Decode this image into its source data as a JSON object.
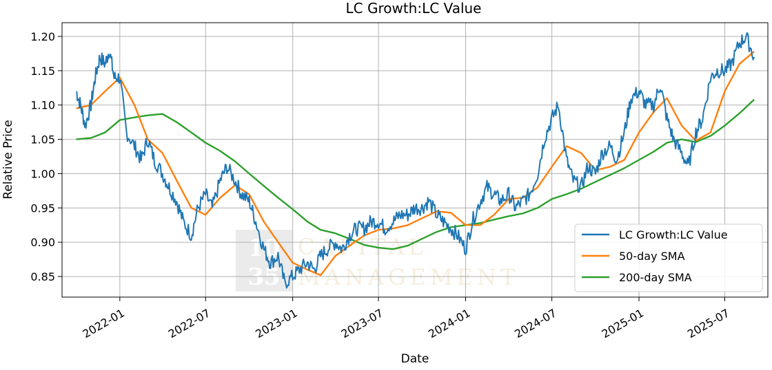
{
  "chart_data": {
    "type": "line",
    "title": "LC Growth:LC Value",
    "xlabel": "Date",
    "ylabel": "Relative Price",
    "xlim": [
      "2021-09-01",
      "2025-09-30"
    ],
    "ylim": [
      0.82,
      1.22
    ],
    "x_ticks": [
      "2022-01",
      "2022-07",
      "2023-01",
      "2023-07",
      "2024-01",
      "2024-07",
      "2025-01",
      "2025-07"
    ],
    "y_ticks": [
      "0.85",
      "0.90",
      "0.95",
      "1.00",
      "1.05",
      "1.10",
      "1.15",
      "1.20"
    ],
    "grid": true,
    "legend_position": "lower-right",
    "colors": {
      "series1": "#1f77b4",
      "series2": "#ff7f0e",
      "series3": "#2ca02c"
    },
    "series": [
      {
        "name": "LC Growth:LC Value",
        "x": [
          "2021-10-01",
          "2021-10-10",
          "2021-10-20",
          "2021-11-01",
          "2021-11-10",
          "2021-11-20",
          "2021-12-01",
          "2021-12-10",
          "2021-12-20",
          "2022-01-01",
          "2022-01-15",
          "2022-02-01",
          "2022-02-15",
          "2022-03-01",
          "2022-03-15",
          "2022-04-01",
          "2022-04-15",
          "2022-05-01",
          "2022-05-15",
          "2022-06-01",
          "2022-06-15",
          "2022-07-01",
          "2022-07-15",
          "2022-08-01",
          "2022-08-15",
          "2022-09-01",
          "2022-09-15",
          "2022-10-01",
          "2022-10-15",
          "2022-11-01",
          "2022-11-15",
          "2022-12-01",
          "2022-12-15",
          "2023-01-01",
          "2023-01-15",
          "2023-02-01",
          "2023-02-15",
          "2023-03-01",
          "2023-03-15",
          "2023-04-01",
          "2023-04-15",
          "2023-05-01",
          "2023-05-15",
          "2023-06-01",
          "2023-06-15",
          "2023-07-01",
          "2023-07-15",
          "2023-08-01",
          "2023-08-15",
          "2023-09-01",
          "2023-09-15",
          "2023-10-01",
          "2023-10-15",
          "2023-11-01",
          "2023-11-15",
          "2023-12-01",
          "2023-12-15",
          "2024-01-01",
          "2024-01-15",
          "2024-02-01",
          "2024-02-15",
          "2024-03-01",
          "2024-03-15",
          "2024-04-01",
          "2024-04-15",
          "2024-05-01",
          "2024-05-15",
          "2024-06-01",
          "2024-06-15",
          "2024-07-01",
          "2024-07-15",
          "2024-08-01",
          "2024-08-15",
          "2024-09-01",
          "2024-09-15",
          "2024-10-01",
          "2024-10-15",
          "2024-11-01",
          "2024-11-15",
          "2024-12-01",
          "2024-12-15",
          "2025-01-01",
          "2025-01-15",
          "2025-02-01",
          "2025-02-15",
          "2025-03-01",
          "2025-03-15",
          "2025-04-01",
          "2025-04-15",
          "2025-05-01",
          "2025-05-15",
          "2025-06-01",
          "2025-06-15",
          "2025-07-01",
          "2025-07-15",
          "2025-08-01",
          "2025-08-15",
          "2025-09-01"
        ],
        "values": [
          1.12,
          1.1,
          1.07,
          1.1,
          1.14,
          1.17,
          1.16,
          1.18,
          1.14,
          1.14,
          1.06,
          1.04,
          1.02,
          1.05,
          1.02,
          1.0,
          0.98,
          0.96,
          0.93,
          0.91,
          0.95,
          0.97,
          0.95,
          0.99,
          1.01,
          0.99,
          0.97,
          0.96,
          0.93,
          0.89,
          0.87,
          0.88,
          0.84,
          0.85,
          0.86,
          0.87,
          0.86,
          0.88,
          0.89,
          0.9,
          0.89,
          0.91,
          0.92,
          0.92,
          0.93,
          0.93,
          0.92,
          0.93,
          0.94,
          0.94,
          0.95,
          0.95,
          0.96,
          0.94,
          0.93,
          0.92,
          0.91,
          0.89,
          0.93,
          0.96,
          0.98,
          0.97,
          0.96,
          0.97,
          0.95,
          0.96,
          0.97,
          1.0,
          1.05,
          1.08,
          1.1,
          1.02,
          0.99,
          0.98,
          1.01,
          1.0,
          1.03,
          1.04,
          1.02,
          1.06,
          1.11,
          1.12,
          1.1,
          1.1,
          1.13,
          1.08,
          1.05,
          1.03,
          1.01,
          1.06,
          1.08,
          1.14,
          1.15,
          1.15,
          1.16,
          1.19,
          1.2,
          1.17
        ]
      },
      {
        "name": "50-day SMA",
        "x": [
          "2021-10-01",
          "2021-11-01",
          "2021-12-01",
          "2022-01-01",
          "2022-02-01",
          "2022-03-01",
          "2022-04-01",
          "2022-05-01",
          "2022-06-01",
          "2022-07-01",
          "2022-08-01",
          "2022-09-01",
          "2022-10-01",
          "2022-11-01",
          "2022-12-01",
          "2023-01-01",
          "2023-02-01",
          "2023-03-01",
          "2023-04-01",
          "2023-05-01",
          "2023-06-01",
          "2023-07-01",
          "2023-08-01",
          "2023-09-01",
          "2023-10-01",
          "2023-11-01",
          "2023-12-01",
          "2024-01-01",
          "2024-02-01",
          "2024-03-01",
          "2024-04-01",
          "2024-05-01",
          "2024-06-01",
          "2024-07-01",
          "2024-08-01",
          "2024-09-01",
          "2024-10-01",
          "2024-11-01",
          "2024-12-01",
          "2025-01-01",
          "2025-02-01",
          "2025-03-01",
          "2025-04-01",
          "2025-05-01",
          "2025-06-01",
          "2025-07-01",
          "2025-08-01",
          "2025-09-01"
        ],
        "values": [
          1.095,
          1.1,
          1.12,
          1.14,
          1.1,
          1.05,
          1.03,
          0.99,
          0.95,
          0.94,
          0.965,
          0.983,
          0.97,
          0.93,
          0.9,
          0.87,
          0.86,
          0.852,
          0.88,
          0.895,
          0.91,
          0.918,
          0.92,
          0.925,
          0.935,
          0.945,
          0.943,
          0.925,
          0.925,
          0.94,
          0.963,
          0.965,
          0.98,
          1.01,
          1.04,
          1.03,
          1.005,
          1.01,
          1.02,
          1.06,
          1.09,
          1.11,
          1.07,
          1.048,
          1.06,
          1.12,
          1.16,
          1.178
        ]
      },
      {
        "name": "200-day SMA",
        "x": [
          "2021-10-01",
          "2021-11-01",
          "2021-12-01",
          "2022-01-01",
          "2022-02-01",
          "2022-03-01",
          "2022-04-01",
          "2022-05-01",
          "2022-06-01",
          "2022-07-01",
          "2022-08-01",
          "2022-09-01",
          "2022-10-01",
          "2022-11-01",
          "2022-12-01",
          "2023-01-01",
          "2023-02-01",
          "2023-03-01",
          "2023-04-01",
          "2023-05-01",
          "2023-06-01",
          "2023-07-01",
          "2023-08-01",
          "2023-09-01",
          "2023-10-01",
          "2023-11-01",
          "2023-12-01",
          "2024-01-01",
          "2024-02-01",
          "2024-03-01",
          "2024-04-01",
          "2024-05-01",
          "2024-06-01",
          "2024-07-01",
          "2024-08-01",
          "2024-09-01",
          "2024-10-01",
          "2024-11-01",
          "2024-12-01",
          "2025-01-01",
          "2025-02-01",
          "2025-03-01",
          "2025-04-01",
          "2025-05-01",
          "2025-06-01",
          "2025-07-01",
          "2025-08-01",
          "2025-09-01"
        ],
        "values": [
          1.05,
          1.052,
          1.06,
          1.078,
          1.082,
          1.085,
          1.087,
          1.075,
          1.06,
          1.045,
          1.033,
          1.018,
          1.0,
          0.982,
          0.965,
          0.948,
          0.93,
          0.918,
          0.913,
          0.905,
          0.896,
          0.892,
          0.89,
          0.895,
          0.905,
          0.915,
          0.922,
          0.925,
          0.928,
          0.933,
          0.938,
          0.942,
          0.95,
          0.963,
          0.97,
          0.978,
          0.988,
          0.998,
          1.008,
          1.02,
          1.032,
          1.045,
          1.05,
          1.046,
          1.055,
          1.07,
          1.088,
          1.108
        ]
      }
    ]
  },
  "watermark": {
    "block_top": "10",
    "block_bottom": "35",
    "line1": "CAPITAL",
    "line2": "MANAGEMENT"
  }
}
